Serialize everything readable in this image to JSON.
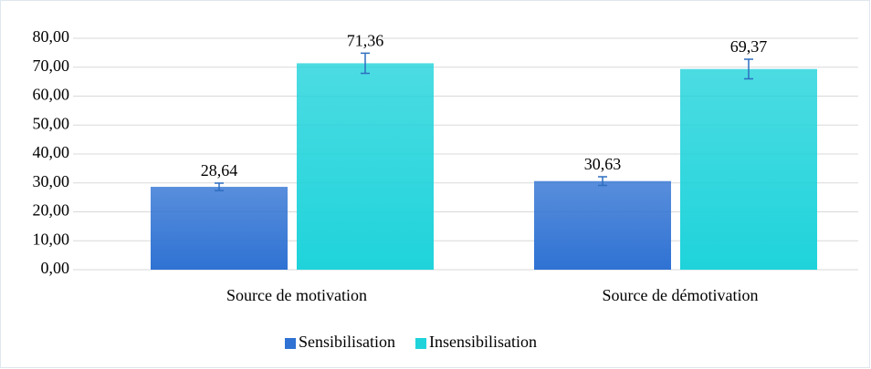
{
  "chart_data": {
    "type": "bar",
    "categories": [
      "Source de motivation",
      "Source de démotivation"
    ],
    "series": [
      {
        "name": "Sensibilisation",
        "color": "#2f72d3",
        "values": [
          28.64,
          30.63
        ],
        "value_labels": [
          "28,64",
          "30,63"
        ],
        "errors": [
          1.3,
          1.5
        ]
      },
      {
        "name": "Insensibilisation",
        "color": "#1fd3db",
        "values": [
          71.36,
          69.37
        ],
        "value_labels": [
          "71,36",
          "69,37"
        ],
        "errors": [
          3.5,
          3.4
        ]
      }
    ],
    "ylim": [
      0,
      80
    ],
    "yticks": [
      {
        "value": 0,
        "label": "0,00"
      },
      {
        "value": 10,
        "label": "10,00"
      },
      {
        "value": 20,
        "label": "20,00"
      },
      {
        "value": 30,
        "label": "30,00"
      },
      {
        "value": 40,
        "label": "40,00"
      },
      {
        "value": 50,
        "label": "50,00"
      },
      {
        "value": 60,
        "label": "60,00"
      },
      {
        "value": 70,
        "label": "70,00"
      },
      {
        "value": 80,
        "label": "80,00"
      }
    ],
    "grid": true,
    "legend": "bottom"
  }
}
